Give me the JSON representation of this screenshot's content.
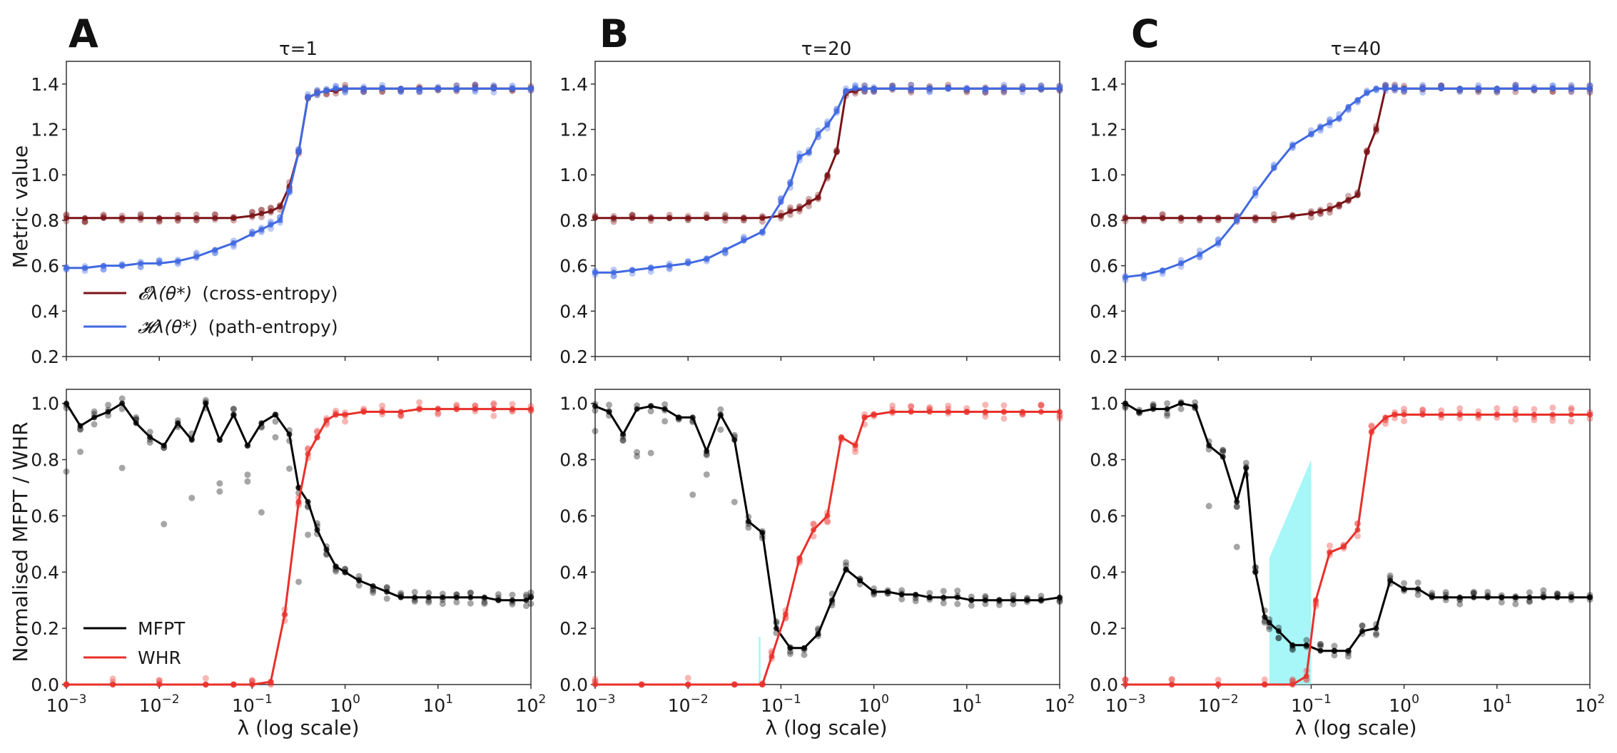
{
  "chart_data": [
    {
      "panel": "A",
      "title": "τ=1",
      "position": "top",
      "type": "line",
      "xscale": "log",
      "xlim": [
        0.001,
        100
      ],
      "ylim": [
        0.2,
        1.5
      ],
      "ylabel": "Metric value",
      "xlabel": "",
      "yticks": [
        "0.2",
        "0.4",
        "0.6",
        "0.8",
        "1.0",
        "1.2",
        "1.4"
      ],
      "legend": {
        "location": "lower-left",
        "entries": [
          "𝓔_λ(θ*) (cross-entropy)",
          "𝓗_λ(θ*) (path-entropy)"
        ]
      },
      "series": [
        {
          "name": "cross-entropy",
          "color": "#7b1418",
          "logx": [
            -3,
            -2.8,
            -2.6,
            -2.4,
            -2.2,
            -2,
            -1.8,
            -1.6,
            -1.4,
            -1.2,
            -1,
            -0.9,
            -0.8,
            -0.7,
            -0.6,
            -0.5,
            -0.4,
            -0.3,
            -0.2,
            -0.1,
            0,
            0.2,
            0.4,
            0.6,
            0.8,
            1,
            1.2,
            1.4,
            1.6,
            1.8,
            2
          ],
          "y": [
            0.81,
            0.81,
            0.81,
            0.81,
            0.81,
            0.81,
            0.81,
            0.81,
            0.81,
            0.81,
            0.82,
            0.83,
            0.84,
            0.86,
            0.95,
            1.1,
            1.34,
            1.36,
            1.37,
            1.37,
            1.38,
            1.38,
            1.38,
            1.38,
            1.38,
            1.38,
            1.38,
            1.38,
            1.38,
            1.38,
            1.38
          ]
        },
        {
          "name": "path-entropy",
          "color": "#4169e1",
          "logx": [
            -3,
            -2.8,
            -2.6,
            -2.4,
            -2.2,
            -2,
            -1.8,
            -1.6,
            -1.4,
            -1.2,
            -1,
            -0.9,
            -0.8,
            -0.7,
            -0.6,
            -0.5,
            -0.4,
            -0.3,
            -0.2,
            -0.1,
            0,
            0.2,
            0.4,
            0.6,
            0.8,
            1,
            1.2,
            1.4,
            1.6,
            1.8,
            2
          ],
          "y": [
            0.59,
            0.59,
            0.6,
            0.6,
            0.61,
            0.61,
            0.62,
            0.64,
            0.67,
            0.7,
            0.74,
            0.76,
            0.78,
            0.8,
            0.93,
            1.1,
            1.34,
            1.36,
            1.37,
            1.38,
            1.38,
            1.38,
            1.38,
            1.38,
            1.38,
            1.38,
            1.38,
            1.38,
            1.38,
            1.38,
            1.38
          ]
        }
      ]
    },
    {
      "panel": "B",
      "title": "τ=20",
      "position": "top",
      "type": "line",
      "xscale": "log",
      "xlim": [
        0.001,
        100
      ],
      "ylim": [
        0.2,
        1.5
      ],
      "ylabel": "",
      "xlabel": "",
      "yticks": [
        "0.2",
        "0.4",
        "0.6",
        "0.8",
        "1.0",
        "1.2",
        "1.4"
      ],
      "series": [
        {
          "name": "cross-entropy",
          "color": "#7b1418",
          "logx": [
            -3,
            -2.8,
            -2.6,
            -2.4,
            -2.2,
            -2,
            -1.8,
            -1.6,
            -1.4,
            -1.2,
            -1,
            -0.9,
            -0.8,
            -0.7,
            -0.6,
            -0.5,
            -0.4,
            -0.3,
            -0.2,
            -0.1,
            0,
            0.2,
            0.4,
            0.6,
            0.8,
            1,
            1.2,
            1.4,
            1.6,
            1.8,
            2
          ],
          "y": [
            0.81,
            0.81,
            0.81,
            0.81,
            0.81,
            0.81,
            0.81,
            0.81,
            0.81,
            0.81,
            0.82,
            0.84,
            0.85,
            0.88,
            0.9,
            1.0,
            1.1,
            1.36,
            1.37,
            1.38,
            1.38,
            1.38,
            1.38,
            1.38,
            1.38,
            1.38,
            1.38,
            1.38,
            1.38,
            1.38,
            1.38
          ]
        },
        {
          "name": "path-entropy",
          "color": "#4169e1",
          "logx": [
            -3,
            -2.8,
            -2.6,
            -2.4,
            -2.2,
            -2,
            -1.8,
            -1.6,
            -1.4,
            -1.2,
            -1,
            -0.9,
            -0.8,
            -0.7,
            -0.6,
            -0.5,
            -0.4,
            -0.3,
            -0.2,
            -0.1,
            0,
            0.2,
            0.4,
            0.6,
            0.8,
            1,
            1.2,
            1.4,
            1.6,
            1.8,
            2
          ],
          "y": [
            0.57,
            0.57,
            0.58,
            0.59,
            0.6,
            0.61,
            0.63,
            0.67,
            0.71,
            0.75,
            0.88,
            0.96,
            1.08,
            1.1,
            1.18,
            1.22,
            1.28,
            1.37,
            1.38,
            1.38,
            1.38,
            1.38,
            1.38,
            1.38,
            1.38,
            1.38,
            1.38,
            1.38,
            1.38,
            1.38,
            1.38
          ]
        }
      ]
    },
    {
      "panel": "C",
      "title": "τ=40",
      "position": "top",
      "type": "line",
      "xscale": "log",
      "xlim": [
        0.001,
        100
      ],
      "ylim": [
        0.2,
        1.5
      ],
      "ylabel": "",
      "xlabel": "",
      "yticks": [
        "0.2",
        "0.4",
        "0.6",
        "0.8",
        "1.0",
        "1.2",
        "1.4"
      ],
      "series": [
        {
          "name": "cross-entropy",
          "color": "#7b1418",
          "logx": [
            -3,
            -2.8,
            -2.6,
            -2.4,
            -2.2,
            -2,
            -1.8,
            -1.6,
            -1.4,
            -1.2,
            -1,
            -0.9,
            -0.8,
            -0.7,
            -0.6,
            -0.5,
            -0.4,
            -0.3,
            -0.2,
            -0.1,
            0,
            0.2,
            0.4,
            0.6,
            0.8,
            1,
            1.2,
            1.4,
            1.6,
            1.8,
            2
          ],
          "y": [
            0.81,
            0.81,
            0.81,
            0.81,
            0.81,
            0.81,
            0.81,
            0.81,
            0.81,
            0.82,
            0.83,
            0.84,
            0.85,
            0.87,
            0.89,
            0.91,
            1.1,
            1.2,
            1.38,
            1.38,
            1.38,
            1.38,
            1.38,
            1.38,
            1.38,
            1.38,
            1.38,
            1.38,
            1.38,
            1.38,
            1.38
          ]
        },
        {
          "name": "path-entropy",
          "color": "#4169e1",
          "logx": [
            -3,
            -2.8,
            -2.6,
            -2.4,
            -2.2,
            -2,
            -1.8,
            -1.6,
            -1.4,
            -1.2,
            -1,
            -0.9,
            -0.8,
            -0.7,
            -0.6,
            -0.5,
            -0.4,
            -0.3,
            -0.2,
            -0.1,
            0,
            0.2,
            0.4,
            0.6,
            0.8,
            1,
            1.2,
            1.4,
            1.6,
            1.8,
            2
          ],
          "y": [
            0.55,
            0.56,
            0.58,
            0.61,
            0.65,
            0.7,
            0.8,
            0.92,
            1.03,
            1.13,
            1.18,
            1.21,
            1.23,
            1.25,
            1.3,
            1.33,
            1.36,
            1.38,
            1.38,
            1.38,
            1.38,
            1.38,
            1.38,
            1.38,
            1.38,
            1.38,
            1.38,
            1.38,
            1.38,
            1.38,
            1.38
          ]
        }
      ]
    },
    {
      "panel": "A",
      "position": "bottom",
      "type": "line",
      "xscale": "log",
      "xlim": [
        0.001,
        100
      ],
      "ylim": [
        0,
        1.05
      ],
      "ylabel": "Normalised MFPT / WHR",
      "xlabel": "λ (log scale)",
      "yticks": [
        "0.0",
        "0.2",
        "0.4",
        "0.6",
        "0.8",
        "1.0"
      ],
      "legend": {
        "location": "lower-left",
        "entries": [
          "MFPT",
          "WHR"
        ]
      },
      "series": [
        {
          "name": "MFPT",
          "color": "#000000",
          "logx": [
            -3,
            -2.85,
            -2.7,
            -2.55,
            -2.4,
            -2.25,
            -2.1,
            -1.95,
            -1.8,
            -1.65,
            -1.5,
            -1.35,
            -1.2,
            -1.05,
            -0.9,
            -0.75,
            -0.6,
            -0.5,
            -0.4,
            -0.3,
            -0.2,
            -0.1,
            0,
            0.15,
            0.3,
            0.45,
            0.6,
            0.75,
            0.9,
            1.05,
            1.2,
            1.35,
            1.5,
            1.65,
            1.8,
            1.95,
            2
          ],
          "y": [
            1.0,
            0.92,
            0.95,
            0.97,
            1.0,
            0.93,
            0.88,
            0.85,
            0.93,
            0.87,
            1.0,
            0.87,
            0.96,
            0.85,
            0.93,
            0.96,
            0.89,
            0.7,
            0.65,
            0.55,
            0.48,
            0.42,
            0.4,
            0.37,
            0.35,
            0.33,
            0.31,
            0.31,
            0.31,
            0.31,
            0.31,
            0.31,
            0.31,
            0.3,
            0.3,
            0.3,
            0.31
          ]
        },
        {
          "name": "WHR",
          "color": "#e8302b",
          "logx": [
            -3,
            -2.5,
            -2,
            -1.5,
            -1.2,
            -1.0,
            -0.8,
            -0.65,
            -0.5,
            -0.4,
            -0.3,
            -0.2,
            -0.1,
            0,
            0.2,
            0.4,
            0.6,
            0.8,
            1,
            1.2,
            1.4,
            1.6,
            1.8,
            2
          ],
          "y": [
            0,
            0,
            0,
            0,
            0,
            0,
            0.01,
            0.25,
            0.65,
            0.82,
            0.88,
            0.94,
            0.96,
            0.96,
            0.97,
            0.97,
            0.97,
            0.98,
            0.98,
            0.98,
            0.98,
            0.98,
            0.98,
            0.98
          ]
        }
      ]
    },
    {
      "panel": "B",
      "position": "bottom",
      "type": "line",
      "xscale": "log",
      "xlim": [
        0.001,
        100
      ],
      "ylim": [
        0,
        1.05
      ],
      "ylabel": "",
      "xlabel": "λ (log scale)",
      "yticks": [
        "0.0",
        "0.2",
        "0.4",
        "0.6",
        "0.8",
        "1.0"
      ],
      "shaded_band": {
        "logx_from": -1.24,
        "logx_to": -1.22,
        "y_low": 0,
        "y_high": 0.17,
        "color": "#8af3f5"
      },
      "series": [
        {
          "name": "MFPT",
          "color": "#000000",
          "logx": [
            -3,
            -2.85,
            -2.7,
            -2.55,
            -2.4,
            -2.25,
            -2.1,
            -1.95,
            -1.8,
            -1.65,
            -1.5,
            -1.35,
            -1.2,
            -1.05,
            -0.9,
            -0.75,
            -0.6,
            -0.45,
            -0.3,
            -0.15,
            0,
            0.15,
            0.3,
            0.45,
            0.6,
            0.75,
            0.9,
            1.05,
            1.2,
            1.35,
            1.5,
            1.65,
            1.8,
            2
          ],
          "y": [
            0.99,
            0.97,
            0.89,
            0.98,
            0.99,
            0.98,
            0.95,
            0.95,
            0.83,
            0.96,
            0.87,
            0.58,
            0.54,
            0.2,
            0.13,
            0.13,
            0.18,
            0.3,
            0.41,
            0.37,
            0.33,
            0.33,
            0.32,
            0.32,
            0.31,
            0.31,
            0.31,
            0.3,
            0.3,
            0.3,
            0.3,
            0.3,
            0.3,
            0.31
          ]
        },
        {
          "name": "WHR",
          "color": "#e8302b",
          "logx": [
            -3,
            -2.5,
            -2,
            -1.5,
            -1.2,
            -1.1,
            -0.95,
            -0.8,
            -0.65,
            -0.5,
            -0.35,
            -0.2,
            -0.1,
            0,
            0.2,
            0.4,
            0.6,
            0.8,
            1,
            1.2,
            1.4,
            1.6,
            1.8,
            2
          ],
          "y": [
            0,
            0,
            0,
            0,
            0,
            0.1,
            0.25,
            0.45,
            0.55,
            0.6,
            0.88,
            0.85,
            0.95,
            0.96,
            0.97,
            0.97,
            0.97,
            0.97,
            0.97,
            0.97,
            0.97,
            0.97,
            0.97,
            0.97
          ]
        }
      ]
    },
    {
      "panel": "C",
      "position": "bottom",
      "type": "line",
      "xscale": "log",
      "xlim": [
        0.001,
        100
      ],
      "ylim": [
        0,
        1.05
      ],
      "ylabel": "",
      "xlabel": "λ (log scale)",
      "yticks": [
        "0.0",
        "0.2",
        "0.4",
        "0.6",
        "0.8",
        "1.0"
      ],
      "shaded_band": {
        "logx_from": -1.45,
        "logx_to": -1.0,
        "y_low": 0,
        "y_high_start": 0.45,
        "y_high_end": 0.8,
        "color": "#8af3f5"
      },
      "series": [
        {
          "name": "MFPT",
          "color": "#000000",
          "logx": [
            -3,
            -2.85,
            -2.7,
            -2.55,
            -2.4,
            -2.25,
            -2.1,
            -1.95,
            -1.8,
            -1.7,
            -1.6,
            -1.5,
            -1.45,
            -1.35,
            -1.2,
            -1.05,
            -0.9,
            -0.75,
            -0.6,
            -0.45,
            -0.3,
            -0.15,
            0,
            0.15,
            0.3,
            0.45,
            0.6,
            0.75,
            0.9,
            1.05,
            1.2,
            1.35,
            1.5,
            1.65,
            1.8,
            2
          ],
          "y": [
            1.0,
            0.97,
            0.98,
            0.98,
            1.0,
            0.99,
            0.85,
            0.81,
            0.65,
            0.77,
            0.4,
            0.24,
            0.22,
            0.19,
            0.14,
            0.14,
            0.12,
            0.12,
            0.12,
            0.19,
            0.2,
            0.37,
            0.34,
            0.34,
            0.31,
            0.31,
            0.31,
            0.31,
            0.31,
            0.31,
            0.31,
            0.31,
            0.31,
            0.31,
            0.31,
            0.31
          ]
        },
        {
          "name": "WHR",
          "color": "#e8302b",
          "logx": [
            -3,
            -2.5,
            -2,
            -1.5,
            -1.2,
            -1.05,
            -0.95,
            -0.8,
            -0.65,
            -0.5,
            -0.35,
            -0.2,
            -0.1,
            0,
            0.2,
            0.4,
            0.6,
            0.8,
            1,
            1.2,
            1.4,
            1.6,
            1.8,
            2
          ],
          "y": [
            0,
            0,
            0,
            0,
            0,
            0.03,
            0.3,
            0.47,
            0.49,
            0.55,
            0.9,
            0.95,
            0.96,
            0.96,
            0.96,
            0.96,
            0.96,
            0.96,
            0.96,
            0.96,
            0.96,
            0.96,
            0.96,
            0.96
          ]
        }
      ]
    }
  ],
  "panel_letters": [
    "A",
    "B",
    "C"
  ],
  "panel_titles": [
    "τ=1",
    "τ=20",
    "τ=40"
  ],
  "xtick_labels": {
    "k1": {
      "base": "10",
      "exp": "−3"
    },
    "k2": {
      "base": "10",
      "exp": "−2"
    },
    "k3": {
      "base": "10",
      "exp": "−1"
    },
    "k4": {
      "base": "10",
      "exp": "0"
    },
    "k5": {
      "base": "10",
      "exp": "1"
    },
    "k6": {
      "base": "10",
      "exp": "2"
    }
  },
  "axis_titles": {
    "top_ylabel": "Metric value",
    "bottom_ylabel": "Normalised MFPT / WHR",
    "xlabel": "λ (log scale)"
  },
  "legend_top": {
    "cross_entropy_math": "𝓔λ(θ*)",
    "cross_entropy_text": "(cross-entropy)",
    "path_entropy_math": "𝓗λ(θ*)",
    "path_entropy_text": "(path-entropy)"
  },
  "legend_bottom": {
    "mfpt": "MFPT",
    "whr": "WHR"
  },
  "colors": {
    "dark_red": "#7b1418",
    "blue": "#4169e1",
    "black": "#000000",
    "red": "#e8302b",
    "cyan": "#8af3f5"
  }
}
